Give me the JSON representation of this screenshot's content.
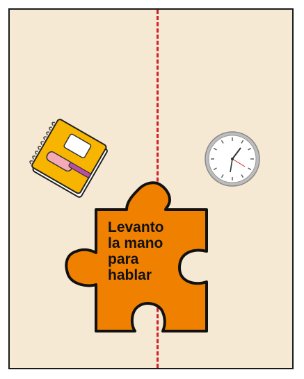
{
  "card": {
    "background": "#f6e9d3",
    "divider_color": "#d0202a"
  },
  "icons": {
    "left": "notebook-pencil-icon",
    "right": "wall-clock-icon"
  },
  "puzzle": {
    "color": "#f08000",
    "lines": [
      "Levanto",
      "la mano",
      "para",
      "hablar"
    ]
  }
}
